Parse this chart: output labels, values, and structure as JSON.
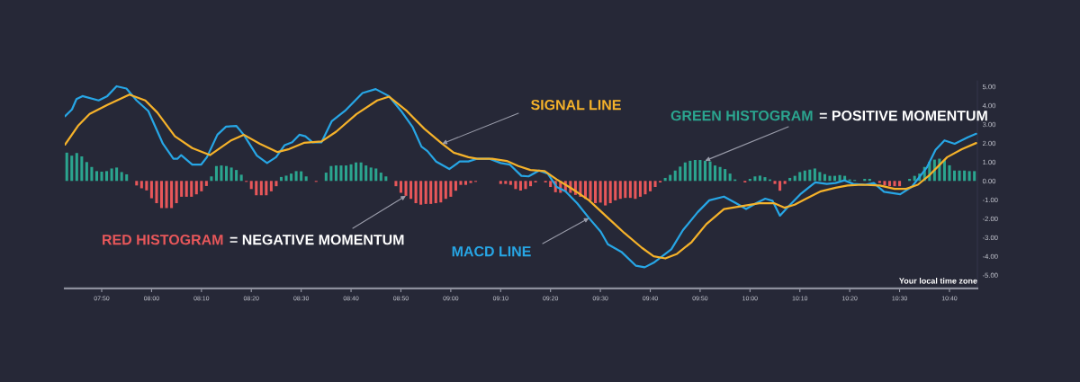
{
  "chart_data": {
    "type": "line",
    "xlim": [
      7.71,
      10.76
    ],
    "ylim": [
      -5.7,
      5.3
    ],
    "xticks": [
      {
        "value": 7.8333,
        "label": "07:50"
      },
      {
        "value": 8,
        "label": "08:00"
      },
      {
        "value": 8.1667,
        "label": "08:10"
      },
      {
        "value": 8.3333,
        "label": "08:20"
      },
      {
        "value": 8.5,
        "label": "08:30"
      },
      {
        "value": 8.6667,
        "label": "08:40"
      },
      {
        "value": 8.8333,
        "label": "08:50"
      },
      {
        "value": 9,
        "label": "09:00"
      },
      {
        "value": 9.1667,
        "label": "09:10"
      },
      {
        "value": 9.3333,
        "label": "09:20"
      },
      {
        "value": 9.5,
        "label": "09:30"
      },
      {
        "value": 9.6667,
        "label": "09:40"
      },
      {
        "value": 9.8333,
        "label": "09:50"
      },
      {
        "value": 10,
        "label": "10:00"
      },
      {
        "value": 10.1667,
        "label": "10:10"
      },
      {
        "value": 10.3333,
        "label": "10:20"
      },
      {
        "value": 10.5,
        "label": "10:30"
      },
      {
        "value": 10.6667,
        "label": "10:40"
      }
    ],
    "yticks": [
      {
        "value": 5,
        "label": "5.00"
      },
      {
        "value": 4,
        "label": "4.00"
      },
      {
        "value": 3,
        "label": "3.00"
      },
      {
        "value": 2,
        "label": "2.00"
      },
      {
        "value": 1,
        "label": "1.00"
      },
      {
        "value": 0,
        "label": "0.00"
      },
      {
        "value": -1,
        "label": "-1.00"
      },
      {
        "value": -2,
        "label": "-2.00"
      },
      {
        "value": -3,
        "label": "-3.00"
      },
      {
        "value": -4,
        "label": "-4.00"
      },
      {
        "value": -5,
        "label": "-5.00"
      }
    ],
    "series": [
      {
        "type": "bar",
        "color": "#2ba58f",
        "x": [
          7.7167,
          7.7333,
          7.75,
          7.7667,
          7.7833,
          7.8,
          7.8167,
          7.8333,
          7.85,
          7.8667,
          7.8833,
          7.9,
          7.9167,
          8.2,
          8.2167,
          8.2333,
          8.25,
          8.2667,
          8.2833,
          8.3,
          8.4333,
          8.45,
          8.4667,
          8.4833,
          8.5,
          8.5167,
          8.5833,
          8.6,
          8.6167,
          8.6333,
          8.65,
          8.6667,
          8.6833,
          8.7,
          8.7167,
          8.7333,
          8.75,
          8.7667,
          8.7833,
          9.7167,
          9.7333,
          9.75,
          9.7667,
          9.7833,
          9.8,
          9.8167,
          9.8333,
          9.85,
          9.8667,
          9.8833,
          9.9,
          9.9167,
          9.9333,
          9.95,
          10.0,
          10.0167,
          10.0333,
          10.05,
          10.0667,
          10.1333,
          10.15,
          10.1667,
          10.1833,
          10.2,
          10.2167,
          10.2333,
          10.25,
          10.2667,
          10.2833,
          10.3,
          10.3167,
          10.3333,
          10.35,
          10.3833,
          10.4,
          10.5333,
          10.55,
          10.5667,
          10.5833,
          10.6,
          10.6167,
          10.6333,
          10.65,
          10.6667,
          10.6833,
          10.7,
          10.7167,
          10.7333,
          10.75
        ],
        "values": [
          1.5,
          1.34,
          1.48,
          1.3,
          1.0,
          0.74,
          0.52,
          0.49,
          0.52,
          0.66,
          0.71,
          0.47,
          0.35,
          0.24,
          0.79,
          0.82,
          0.79,
          0.71,
          0.58,
          0.33,
          0.21,
          0.28,
          0.39,
          0.52,
          0.51,
          0.24,
          0.44,
          0.79,
          0.82,
          0.82,
          0.82,
          0.88,
          0.98,
          0.98,
          0.82,
          0.71,
          0.66,
          0.44,
          0.24,
          0.16,
          0.32,
          0.55,
          0.76,
          0.98,
          1.07,
          1.11,
          1.11,
          1.07,
          1.03,
          0.82,
          0.74,
          0.63,
          0.39,
          0.08,
          0.11,
          0.24,
          0.28,
          0.2,
          0.08,
          0.16,
          0.27,
          0.47,
          0.55,
          0.6,
          0.66,
          0.47,
          0.36,
          0.27,
          0.27,
          0.31,
          0.27,
          0.08,
          0.05,
          0.11,
          0.11,
          0.11,
          0.27,
          0.39,
          0.74,
          1.02,
          1.13,
          1.18,
          1.1,
          0.83,
          0.55,
          0.55,
          0.55,
          0.52,
          0.52
        ]
      },
      {
        "type": "bar",
        "color": "#e8575a",
        "x": [
          7.95,
          7.9667,
          7.9833,
          8.0,
          8.0167,
          8.0333,
          8.05,
          8.0667,
          8.0833,
          8.1,
          8.1167,
          8.1333,
          8.15,
          8.1667,
          8.1833,
          8.3167,
          8.3333,
          8.35,
          8.3667,
          8.3833,
          8.4,
          8.4167,
          8.55,
          8.8167,
          8.8333,
          8.85,
          8.8667,
          8.8833,
          8.9,
          8.9167,
          8.9333,
          8.95,
          8.9667,
          8.9833,
          9.0,
          9.0167,
          9.0333,
          9.05,
          9.0667,
          9.0833,
          9.1667,
          9.1833,
          9.2,
          9.2167,
          9.2333,
          9.25,
          9.2667,
          9.2833,
          9.3167,
          9.3333,
          9.35,
          9.3667,
          9.3833,
          9.4,
          9.4167,
          9.4333,
          9.45,
          9.4667,
          9.4833,
          9.5,
          9.5167,
          9.5333,
          9.55,
          9.5667,
          9.5833,
          9.6,
          9.6167,
          9.6333,
          9.65,
          9.6667,
          9.6833,
          9.7,
          9.9833,
          10.0833,
          10.1,
          10.1167,
          10.4333,
          10.45,
          10.4667,
          10.4833,
          10.5
        ],
        "values": [
          -0.24,
          -0.39,
          -0.5,
          -0.92,
          -1.18,
          -1.44,
          -1.44,
          -1.44,
          -1.18,
          -0.84,
          -0.84,
          -0.84,
          -0.71,
          -0.55,
          -0.27,
          -0.05,
          -0.43,
          -0.76,
          -0.76,
          -0.76,
          -0.55,
          -0.28,
          -0.05,
          -0.28,
          -0.63,
          -0.79,
          -0.95,
          -1.18,
          -1.26,
          -1.22,
          -1.22,
          -1.18,
          -1.14,
          -0.95,
          -0.84,
          -0.52,
          -0.21,
          -0.21,
          -0.11,
          -0.05,
          -0.16,
          -0.16,
          -0.21,
          -0.43,
          -0.51,
          -0.43,
          -0.28,
          -0.08,
          -0.08,
          -0.32,
          -0.6,
          -0.63,
          -0.55,
          -0.63,
          -0.74,
          -0.84,
          -0.95,
          -1.03,
          -1.18,
          -1.15,
          -1.3,
          -1.18,
          -1.03,
          -0.95,
          -0.9,
          -0.9,
          -0.95,
          -0.84,
          -0.71,
          -0.55,
          -0.32,
          -0.08,
          -0.08,
          -0.16,
          -0.52,
          -0.16,
          -0.11,
          -0.24,
          -0.28,
          -0.28,
          -0.28
        ]
      },
      {
        "color": "#27a6e5",
        "x": [
          7.711,
          7.734,
          7.749,
          7.769,
          7.823,
          7.852,
          7.883,
          7.916,
          7.95,
          7.989,
          8.038,
          8.073,
          8.087,
          8.099,
          8.136,
          8.166,
          8.185,
          8.22,
          8.249,
          8.283,
          8.308,
          8.352,
          8.386,
          8.416,
          8.445,
          8.47,
          8.494,
          8.514,
          8.538,
          8.568,
          8.602,
          8.646,
          8.705,
          8.749,
          8.793,
          8.834,
          8.873,
          8.902,
          8.922,
          8.951,
          8.995,
          9.03,
          9.059,
          9.089,
          9.128,
          9.167,
          9.197,
          9.236,
          9.26,
          9.295,
          9.324,
          9.354,
          9.383,
          9.422,
          9.462,
          9.501,
          9.525,
          9.57,
          9.619,
          9.648,
          9.678,
          9.737,
          9.776,
          9.825,
          9.864,
          9.913,
          9.953,
          9.987,
          10.021,
          10.051,
          10.075,
          10.1,
          10.129,
          10.168,
          10.218,
          10.257,
          10.286,
          10.316,
          10.345,
          10.385,
          10.414,
          10.448,
          10.502,
          10.541,
          10.591,
          10.62,
          10.65,
          10.684,
          10.728,
          10.756
        ],
        "values": [
          3.43,
          3.79,
          4.34,
          4.5,
          4.27,
          4.5,
          5.02,
          4.9,
          4.27,
          3.71,
          1.97,
          1.18,
          1.18,
          1.37,
          0.87,
          0.87,
          1.26,
          2.45,
          2.88,
          2.92,
          2.45,
          1.34,
          0.95,
          1.26,
          1.9,
          2.05,
          2.45,
          2.37,
          2.05,
          2.05,
          3.16,
          3.71,
          4.66,
          4.87,
          4.5,
          3.71,
          2.84,
          1.82,
          1.58,
          1.03,
          0.63,
          1.03,
          1.03,
          1.18,
          1.18,
          0.95,
          0.87,
          0.27,
          0.24,
          0.55,
          0.39,
          -0.32,
          -0.55,
          -1.18,
          -1.97,
          -2.69,
          -3.36,
          -3.76,
          -4.5,
          -4.58,
          -4.34,
          -3.63,
          -2.61,
          -1.66,
          -1.03,
          -0.83,
          -1.18,
          -1.49,
          -1.18,
          -0.94,
          -1.05,
          -1.84,
          -1.34,
          -0.71,
          -0.08,
          -0.16,
          -0.11,
          0.03,
          -0.16,
          -0.2,
          -0.11,
          -0.58,
          -0.71,
          -0.31,
          0.71,
          1.65,
          2.15,
          1.97,
          2.31,
          2.5
        ]
      },
      {
        "color": "#f5b22a",
        "x": [
          7.711,
          7.754,
          7.793,
          7.852,
          7.926,
          7.979,
          8.019,
          8.078,
          8.136,
          8.195,
          8.264,
          8.308,
          8.362,
          8.421,
          8.46,
          8.509,
          8.568,
          8.617,
          8.685,
          8.754,
          8.794,
          8.853,
          8.912,
          8.971,
          9.01,
          9.059,
          9.089,
          9.138,
          9.187,
          9.226,
          9.266,
          9.314,
          9.354,
          9.403,
          9.462,
          9.521,
          9.58,
          9.639,
          9.678,
          9.717,
          9.756,
          9.805,
          9.854,
          9.913,
          9.972,
          10.031,
          10.08,
          10.115,
          10.149,
          10.188,
          10.237,
          10.286,
          10.326,
          10.375,
          10.434,
          10.483,
          10.522,
          10.561,
          10.6,
          10.659,
          10.708,
          10.756
        ],
        "values": [
          1.93,
          2.92,
          3.55,
          4.03,
          4.58,
          4.27,
          3.63,
          2.37,
          1.74,
          1.37,
          2.13,
          2.45,
          1.97,
          1.53,
          1.69,
          2.02,
          2.09,
          2.61,
          3.55,
          4.27,
          4.47,
          3.71,
          2.76,
          1.97,
          1.5,
          1.26,
          1.18,
          1.18,
          1.06,
          0.79,
          0.58,
          0.52,
          0.08,
          -0.39,
          -1.03,
          -1.9,
          -2.76,
          -3.55,
          -4.0,
          -4.11,
          -3.87,
          -3.24,
          -2.29,
          -1.49,
          -1.34,
          -1.18,
          -1.18,
          -1.42,
          -1.26,
          -0.94,
          -0.55,
          -0.36,
          -0.24,
          -0.2,
          -0.24,
          -0.42,
          -0.42,
          -0.2,
          0.31,
          1.26,
          1.68,
          2.01
        ]
      }
    ],
    "annotations": [
      {
        "text": "SIGNAL LINE",
        "x": 8.971,
        "y": 1.97
      },
      {
        "text": "GREEN HISTOGRAM",
        "x": 9.85,
        "y": 1.07
      },
      "= POSITIVE MOMENTUM",
      "RED HISTOGRAM",
      {
        "text": "= NEGATIVE MOMENTUM",
        "x": 8.85,
        "y": -0.79
      },
      {
        "text": "MACD LINE",
        "x": 9.462,
        "y": -1.97
      },
      "Your local time zone"
    ]
  }
}
